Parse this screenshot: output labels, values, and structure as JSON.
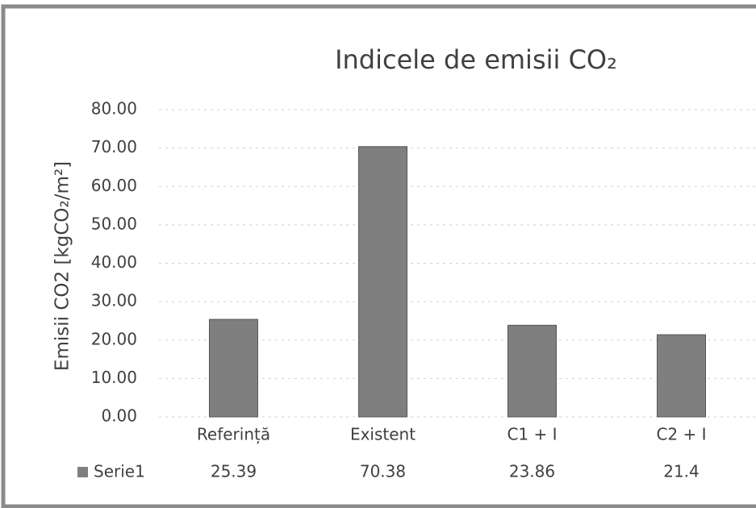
{
  "chart_data": {
    "type": "bar",
    "title": "Indicele de emisii CO₂",
    "y_label": "Emisii CO2 [kgCO₂/m²]",
    "categories": [
      "Referință",
      "Existent",
      "C1 + I",
      "C2 + I"
    ],
    "series": [
      {
        "name": "Serie1",
        "color": "#7f7f7f",
        "values": [
          25.39,
          70.38,
          23.86,
          21.4
        ]
      }
    ],
    "ylim": [
      0,
      80
    ],
    "yticks": [
      {
        "value": 0,
        "label": "0.00"
      },
      {
        "value": 10,
        "label": "10.00"
      },
      {
        "value": 20,
        "label": "20.00"
      },
      {
        "value": 30,
        "label": "30.00"
      },
      {
        "value": 40,
        "label": "40.00"
      },
      {
        "value": 50,
        "label": "50.00"
      },
      {
        "value": 60,
        "label": "60.00"
      },
      {
        "value": 70,
        "label": "70.00"
      },
      {
        "value": 80,
        "label": "80.00"
      }
    ],
    "grid": true
  }
}
